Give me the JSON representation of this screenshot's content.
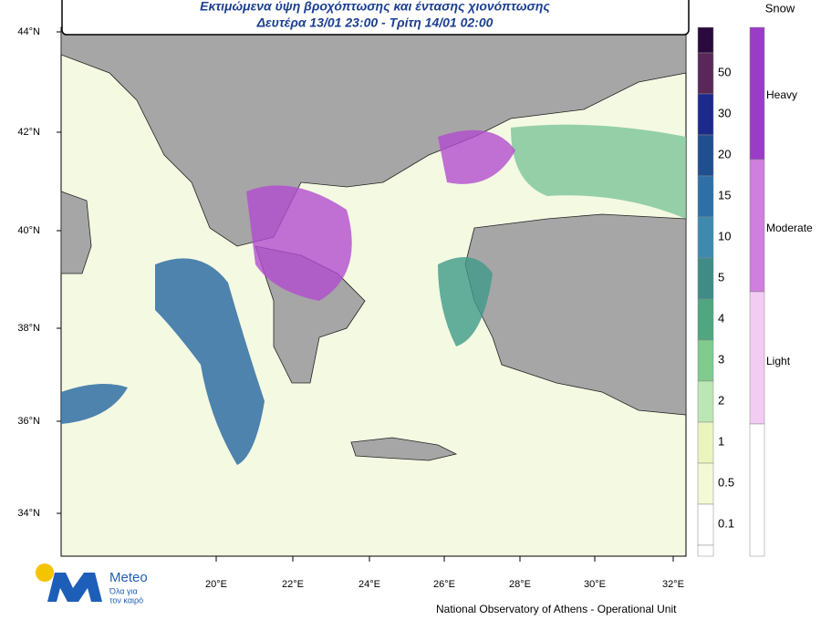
{
  "header": {
    "title": "Εκτιμώμενα ύψη βροχόπτωσης και έντασης χιονόπτωσης",
    "subtitle": "Δευτέρα 13/01 23:00 - Τρίτη 14/01 02:00"
  },
  "map": {
    "lat_labels": [
      "44°N",
      "42°N",
      "40°N",
      "38°N",
      "36°N",
      "34°N"
    ],
    "lon_labels": [
      "20°E",
      "22°E",
      "24°E",
      "26°E",
      "28°E",
      "30°E",
      "32°E"
    ]
  },
  "legend": {
    "rain_levels": [
      50,
      30,
      20,
      15,
      10,
      5,
      4,
      3,
      2,
      1,
      0.5,
      0.1
    ],
    "snow": {
      "title": "Snow",
      "levels": [
        "Heavy",
        "Moderate",
        "Light"
      ]
    }
  },
  "logo": {
    "name": "Meteo",
    "tagline": [
      "Όλα για",
      "τον καιρό"
    ]
  },
  "footer": "National Observatory of Athens - Operational Unit"
}
